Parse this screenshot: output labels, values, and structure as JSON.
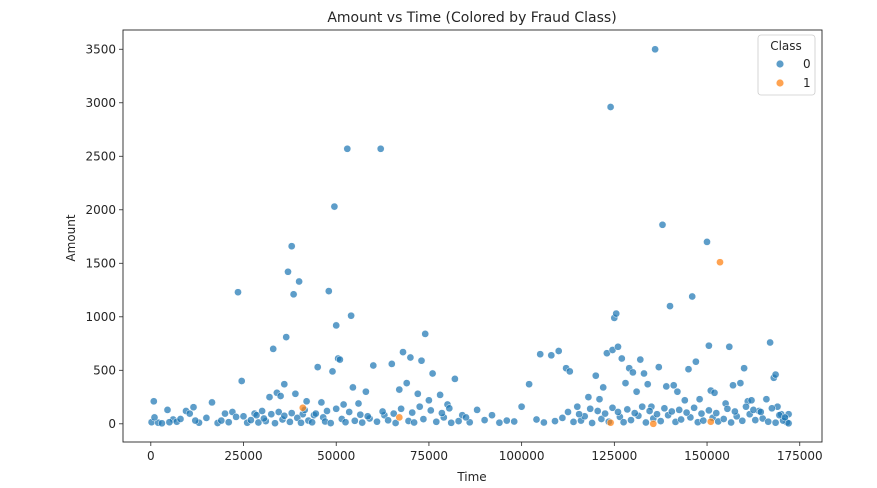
{
  "chart_data": {
    "type": "scatter",
    "title": "Amount vs Time (Colored by Fraud Class)",
    "xlabel": "Time",
    "ylabel": "Amount",
    "xlim": [
      -7500,
      181000
    ],
    "ylim": [
      -170,
      3680
    ],
    "x_ticks": [
      0,
      25000,
      50000,
      75000,
      100000,
      125000,
      150000,
      175000
    ],
    "y_ticks": [
      0,
      500,
      1000,
      1500,
      2000,
      2500,
      3000,
      3500
    ],
    "grid": false,
    "legend": {
      "title": "Class",
      "placement": "top-right"
    },
    "series": [
      {
        "name": "0",
        "color": "#1f77b4",
        "points": [
          [
            800,
            210
          ],
          [
            4500,
            130
          ],
          [
            200,
            15
          ],
          [
            2000,
            10
          ],
          [
            6000,
            40
          ],
          [
            9500,
            120
          ],
          [
            10500,
            95
          ],
          [
            11500,
            155
          ],
          [
            13000,
            10
          ],
          [
            16500,
            200
          ],
          [
            20000,
            95
          ],
          [
            22000,
            110
          ],
          [
            23500,
            1230
          ],
          [
            24500,
            400
          ],
          [
            25000,
            70
          ],
          [
            28000,
            95
          ],
          [
            30000,
            120
          ],
          [
            32000,
            250
          ],
          [
            33000,
            700
          ],
          [
            34000,
            290
          ],
          [
            35000,
            260
          ],
          [
            36000,
            370
          ],
          [
            36500,
            810
          ],
          [
            37000,
            1420
          ],
          [
            38000,
            1660
          ],
          [
            38500,
            1210
          ],
          [
            39000,
            280
          ],
          [
            40000,
            1330
          ],
          [
            41000,
            90
          ],
          [
            42000,
            210
          ],
          [
            44000,
            80
          ],
          [
            45000,
            530
          ],
          [
            46000,
            200
          ],
          [
            48000,
            1240
          ],
          [
            49000,
            490
          ],
          [
            49500,
            2030
          ],
          [
            50000,
            920
          ],
          [
            50500,
            610
          ],
          [
            51000,
            600
          ],
          [
            52000,
            180
          ],
          [
            53000,
            2570
          ],
          [
            54000,
            1010
          ],
          [
            54500,
            340
          ],
          [
            56000,
            190
          ],
          [
            58000,
            300
          ],
          [
            60000,
            545
          ],
          [
            62000,
            2570
          ],
          [
            63000,
            80
          ],
          [
            65000,
            560
          ],
          [
            67000,
            320
          ],
          [
            68000,
            670
          ],
          [
            69000,
            380
          ],
          [
            70000,
            620
          ],
          [
            72000,
            280
          ],
          [
            73000,
            590
          ],
          [
            74000,
            840
          ],
          [
            75000,
            220
          ],
          [
            76000,
            470
          ],
          [
            78000,
            270
          ],
          [
            80000,
            180
          ],
          [
            82000,
            420
          ],
          [
            84000,
            80
          ],
          [
            88000,
            130
          ],
          [
            92000,
            80
          ],
          [
            96000,
            30
          ],
          [
            100000,
            160
          ],
          [
            102000,
            370
          ],
          [
            105000,
            650
          ],
          [
            108000,
            640
          ],
          [
            110000,
            680
          ],
          [
            112000,
            520
          ],
          [
            113000,
            490
          ],
          [
            115000,
            160
          ],
          [
            118000,
            250
          ],
          [
            120000,
            450
          ],
          [
            121000,
            230
          ],
          [
            122000,
            340
          ],
          [
            123000,
            660
          ],
          [
            124000,
            2960
          ],
          [
            124500,
            690
          ],
          [
            125000,
            990
          ],
          [
            125500,
            1030
          ],
          [
            126000,
            720
          ],
          [
            127000,
            610
          ],
          [
            128000,
            380
          ],
          [
            129000,
            520
          ],
          [
            130000,
            480
          ],
          [
            131000,
            300
          ],
          [
            132000,
            600
          ],
          [
            133000,
            470
          ],
          [
            134000,
            370
          ],
          [
            135000,
            160
          ],
          [
            136000,
            3500
          ],
          [
            137000,
            530
          ],
          [
            138000,
            1860
          ],
          [
            139000,
            350
          ],
          [
            140000,
            1100
          ],
          [
            141000,
            360
          ],
          [
            142000,
            300
          ],
          [
            144000,
            220
          ],
          [
            145000,
            510
          ],
          [
            146000,
            1190
          ],
          [
            147000,
            580
          ],
          [
            148000,
            230
          ],
          [
            150000,
            1700
          ],
          [
            150500,
            730
          ],
          [
            151000,
            310
          ],
          [
            152000,
            290
          ],
          [
            155000,
            190
          ],
          [
            156000,
            720
          ],
          [
            157000,
            360
          ],
          [
            159000,
            380
          ],
          [
            160000,
            520
          ],
          [
            161000,
            210
          ],
          [
            162000,
            220
          ],
          [
            164000,
            120
          ],
          [
            166000,
            230
          ],
          [
            167000,
            760
          ],
          [
            168000,
            430
          ],
          [
            168500,
            460
          ],
          [
            169000,
            160
          ],
          [
            170000,
            90
          ],
          [
            171000,
            50
          ],
          [
            172000,
            90
          ],
          [
            171500,
            15
          ],
          [
            3000,
            5
          ],
          [
            7000,
            20
          ],
          [
            12000,
            30
          ],
          [
            18000,
            8
          ],
          [
            21000,
            15
          ],
          [
            26000,
            10
          ],
          [
            27000,
            35
          ],
          [
            29000,
            12
          ],
          [
            31000,
            25
          ],
          [
            33500,
            6
          ],
          [
            35500,
            40
          ],
          [
            37500,
            18
          ],
          [
            39500,
            55
          ],
          [
            40500,
            9
          ],
          [
            42500,
            30
          ],
          [
            43500,
            14
          ],
          [
            46500,
            60
          ],
          [
            47000,
            22
          ],
          [
            48500,
            7
          ],
          [
            51500,
            45
          ],
          [
            52500,
            15
          ],
          [
            55000,
            28
          ],
          [
            57000,
            11
          ],
          [
            59000,
            50
          ],
          [
            61000,
            20
          ],
          [
            64000,
            33
          ],
          [
            66000,
            8
          ],
          [
            69500,
            26
          ],
          [
            71000,
            12
          ],
          [
            73500,
            44
          ],
          [
            77000,
            19
          ],
          [
            79000,
            60
          ],
          [
            81000,
            9
          ],
          [
            83000,
            25
          ],
          [
            86000,
            14
          ],
          [
            90000,
            35
          ],
          [
            94000,
            10
          ],
          [
            98000,
            22
          ],
          [
            104000,
            40
          ],
          [
            106000,
            12
          ],
          [
            109000,
            25
          ],
          [
            111000,
            55
          ],
          [
            114000,
            18
          ],
          [
            116000,
            30
          ],
          [
            117000,
            70
          ],
          [
            119000,
            8
          ],
          [
            121500,
            45
          ],
          [
            123500,
            20
          ],
          [
            126500,
            65
          ],
          [
            127500,
            15
          ],
          [
            129500,
            35
          ],
          [
            131500,
            75
          ],
          [
            133500,
            12
          ],
          [
            135500,
            50
          ],
          [
            137500,
            25
          ],
          [
            139500,
            80
          ],
          [
            141500,
            18
          ],
          [
            143000,
            40
          ],
          [
            145500,
            60
          ],
          [
            147500,
            15
          ],
          [
            149000,
            30
          ],
          [
            151500,
            55
          ],
          [
            153000,
            22
          ],
          [
            154500,
            45
          ],
          [
            156500,
            12
          ],
          [
            158000,
            70
          ],
          [
            159500,
            28
          ],
          [
            161500,
            90
          ],
          [
            163000,
            35
          ],
          [
            165000,
            50
          ],
          [
            166500,
            20
          ],
          [
            168500,
            10
          ],
          [
            170500,
            30
          ],
          [
            172000,
            5
          ],
          [
            1000,
            60
          ],
          [
            5000,
            15
          ],
          [
            8000,
            45
          ],
          [
            15000,
            55
          ],
          [
            19000,
            30
          ],
          [
            23000,
            65
          ],
          [
            28500,
            80
          ],
          [
            30500,
            50
          ],
          [
            32500,
            90
          ],
          [
            34500,
            110
          ],
          [
            36000,
            75
          ],
          [
            38000,
            100
          ],
          [
            41500,
            130
          ],
          [
            44500,
            95
          ],
          [
            47500,
            120
          ],
          [
            50000,
            140
          ],
          [
            53500,
            110
          ],
          [
            56500,
            85
          ],
          [
            58500,
            70
          ],
          [
            62500,
            115
          ],
          [
            65500,
            95
          ],
          [
            67500,
            140
          ],
          [
            70500,
            105
          ],
          [
            72500,
            160
          ],
          [
            75500,
            125
          ],
          [
            78500,
            100
          ],
          [
            80500,
            145
          ],
          [
            85000,
            60
          ],
          [
            112500,
            110
          ],
          [
            115500,
            90
          ],
          [
            118500,
            140
          ],
          [
            120500,
            120
          ],
          [
            122500,
            95
          ],
          [
            124500,
            150
          ],
          [
            126000,
            110
          ],
          [
            128500,
            135
          ],
          [
            130500,
            100
          ],
          [
            132500,
            160
          ],
          [
            134500,
            120
          ],
          [
            136500,
            90
          ],
          [
            138500,
            145
          ],
          [
            140500,
            115
          ],
          [
            142500,
            130
          ],
          [
            144500,
            105
          ],
          [
            146500,
            150
          ],
          [
            148500,
            95
          ],
          [
            150500,
            125
          ],
          [
            152500,
            100
          ],
          [
            155500,
            140
          ],
          [
            157500,
            115
          ],
          [
            160500,
            160
          ],
          [
            162500,
            130
          ],
          [
            164500,
            110
          ],
          [
            167500,
            145
          ],
          [
            169500,
            80
          ],
          [
            171000,
            60
          ]
        ]
      },
      {
        "name": "1",
        "color": "#ff7f0e",
        "points": [
          [
            153500,
            1510
          ],
          [
            41000,
            150
          ],
          [
            67000,
            60
          ],
          [
            124000,
            10
          ],
          [
            135500,
            0
          ],
          [
            151000,
            20
          ]
        ]
      }
    ]
  }
}
